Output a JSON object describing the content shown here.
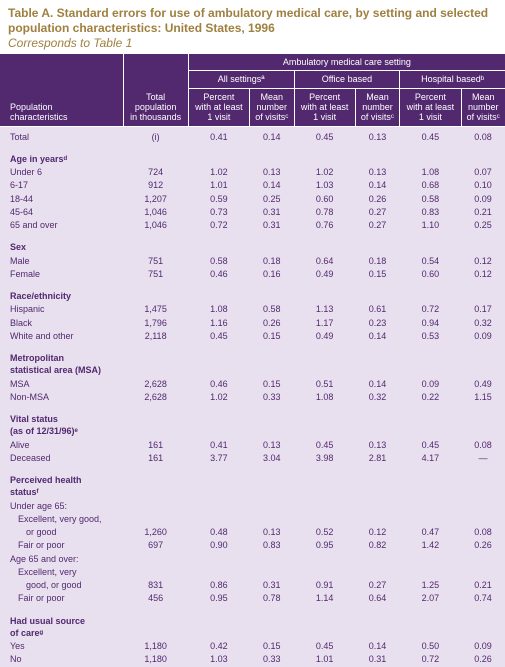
{
  "title": "Table A. Standard errors for use of ambulatory medical care, by setting and selected population characteristics: United States, 1996",
  "subtitle": "Corresponds to Table 1",
  "colors": {
    "title_color": "#a08040",
    "header_bg": "#52286f",
    "header_fg": "#ffffff",
    "body_bg": "#e8e0ee",
    "text": "#52286f"
  },
  "header": {
    "super": "Ambulatory medical care setting",
    "group_all": "All settingsª",
    "group_office": "Office based",
    "group_hosp": "Hospital basedᵇ",
    "c0a": "Population",
    "c0b": "characteristics",
    "c1a": "Total",
    "c1b": "population",
    "c1c": "in thousands",
    "pa": "Percent",
    "pb": "with at least",
    "pc": "1 visit",
    "ma": "Mean",
    "mb": "number",
    "mc": "of visitsᶜ"
  },
  "sections": [
    {
      "rows": [
        {
          "label": "Total",
          "pop": "(i)",
          "v": [
            "0.41",
            "0.14",
            "0.45",
            "0.13",
            "0.45",
            "0.08"
          ]
        }
      ]
    },
    {
      "title": "Age in yearsᵈ",
      "rows": [
        {
          "label": "Under 6",
          "pop": "724",
          "v": [
            "1.02",
            "0.13",
            "1.02",
            "0.13",
            "1.08",
            "0.07"
          ]
        },
        {
          "label": "6-17",
          "pop": "912",
          "v": [
            "1.01",
            "0.14",
            "1.03",
            "0.14",
            "0.68",
            "0.10"
          ]
        },
        {
          "label": "18-44",
          "pop": "1,207",
          "v": [
            "0.59",
            "0.25",
            "0.60",
            "0.26",
            "0.58",
            "0.09"
          ]
        },
        {
          "label": "45-64",
          "pop": "1,046",
          "v": [
            "0.73",
            "0.31",
            "0.78",
            "0.27",
            "0.83",
            "0.21"
          ]
        },
        {
          "label": "65 and over",
          "pop": "1,046",
          "v": [
            "0.72",
            "0.31",
            "0.76",
            "0.27",
            "1.10",
            "0.25"
          ]
        }
      ]
    },
    {
      "title": "Sex",
      "rows": [
        {
          "label": "Male",
          "pop": "751",
          "v": [
            "0.58",
            "0.18",
            "0.64",
            "0.18",
            "0.54",
            "0.12"
          ]
        },
        {
          "label": "Female",
          "pop": "751",
          "v": [
            "0.46",
            "0.16",
            "0.49",
            "0.15",
            "0.60",
            "0.12"
          ]
        }
      ]
    },
    {
      "title": "Race/ethnicity",
      "rows": [
        {
          "label": "Hispanic",
          "pop": "1,475",
          "v": [
            "1.08",
            "0.58",
            "1.13",
            "0.61",
            "0.72",
            "0.17"
          ]
        },
        {
          "label": "Black",
          "pop": "1,796",
          "v": [
            "1.16",
            "0.26",
            "1.17",
            "0.23",
            "0.94",
            "0.32"
          ]
        },
        {
          "label": "White and other",
          "pop": "2,118",
          "v": [
            "0.45",
            "0.15",
            "0.49",
            "0.14",
            "0.53",
            "0.09"
          ]
        }
      ]
    },
    {
      "title": "Metropolitan",
      "title2": "statistical area (MSA)",
      "rows": [
        {
          "label": "MSA",
          "pop": "2,628",
          "v": [
            "0.46",
            "0.15",
            "0.51",
            "0.14",
            "0.09",
            "0.49"
          ]
        },
        {
          "label": "Non-MSA",
          "pop": "2,628",
          "v": [
            "1.02",
            "0.33",
            "1.08",
            "0.32",
            "0.22",
            "1.15"
          ]
        }
      ]
    },
    {
      "title": "Vital status",
      "title2": "(as of 12/31/96)ᵉ",
      "rows": [
        {
          "label": "Alive",
          "pop": "161",
          "v": [
            "0.41",
            "0.13",
            "0.45",
            "0.13",
            "0.45",
            "0.08"
          ]
        },
        {
          "label": "Deceased",
          "pop": "161",
          "v": [
            "3.77",
            "3.04",
            "3.98",
            "2.81",
            "4.17",
            "—"
          ]
        }
      ]
    },
    {
      "title": "Perceived health",
      "title2": "statusᶠ",
      "subrows": [
        {
          "label": "Under age 65:",
          "ind": 0
        },
        {
          "label": "Excellent, very good,",
          "ind": 1
        },
        {
          "label": "or good",
          "ind": 2,
          "pop": "1,260",
          "v": [
            "0.48",
            "0.13",
            "0.52",
            "0.12",
            "0.47",
            "0.08"
          ]
        },
        {
          "label": "Fair or poor",
          "ind": 1,
          "pop": "697",
          "v": [
            "0.90",
            "0.83",
            "0.95",
            "0.82",
            "1.42",
            "0.26"
          ]
        },
        {
          "label": "Age 65 and over:",
          "ind": 0
        },
        {
          "label": "Excellent, very",
          "ind": 1
        },
        {
          "label": "good, or good",
          "ind": 2,
          "pop": "831",
          "v": [
            "0.86",
            "0.31",
            "0.91",
            "0.27",
            "1.25",
            "0.21"
          ]
        },
        {
          "label": "Fair or poor",
          "ind": 1,
          "pop": "456",
          "v": [
            "0.95",
            "0.78",
            "1.14",
            "0.64",
            "2.07",
            "0.74"
          ]
        }
      ]
    },
    {
      "title": "Had usual source",
      "title2": "of careᵍ",
      "rows": [
        {
          "label": "Yes",
          "pop": "1,180",
          "v": [
            "0.42",
            "0.15",
            "0.45",
            "0.14",
            "0.50",
            "0.09"
          ]
        },
        {
          "label": "No",
          "pop": "1,180",
          "v": [
            "1.03",
            "0.33",
            "1.01",
            "0.31",
            "0.72",
            "0.26"
          ]
        }
      ]
    }
  ]
}
